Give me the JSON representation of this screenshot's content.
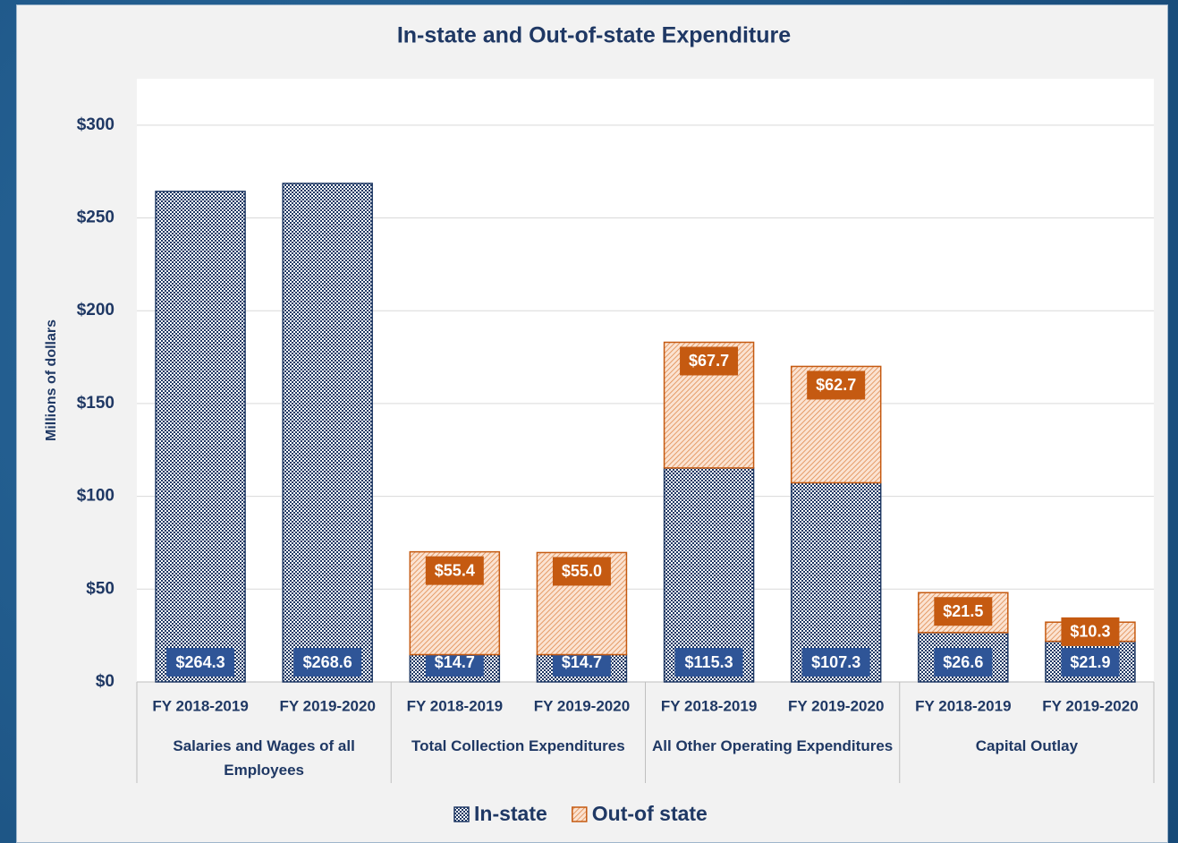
{
  "chart_data": {
    "type": "stacked_bar",
    "title": "In-state and Out-of-state Expenditure",
    "y_label": "Millions of dollars",
    "categories": [
      "FY 2018-2019",
      "FY 2019-2020",
      "FY 2018-2019",
      "FY 2019-2020",
      "FY 2018-2019",
      "FY 2019-2020",
      "FY 2018-2019",
      "FY 2019-2020"
    ],
    "groups": [
      "Salaries and Wages of all Employees",
      "Total Collection Expenditures",
      "All Other Operating Expenditures",
      "Capital Outlay"
    ],
    "series": [
      {
        "name": "In-state",
        "color": "#1f3864",
        "label_color": "#2f5597",
        "values": [
          264.3,
          268.6,
          14.7,
          14.7,
          115.3,
          107.3,
          26.6,
          21.9
        ],
        "value_labels": [
          "$264.3",
          "$268.6",
          "$14.7",
          "$14.7",
          "$115.3",
          "$107.3",
          "$26.6",
          "$21.9"
        ]
      },
      {
        "name": "Out-of state",
        "color": "#c55a11",
        "label_color": "#c55a11",
        "values": [
          null,
          null,
          55.4,
          55.0,
          67.7,
          62.7,
          21.5,
          10.3
        ],
        "value_labels": [
          null,
          null,
          "$55.4",
          "$55.0",
          "$67.7",
          "$62.7",
          "$21.5",
          "$10.3"
        ]
      }
    ],
    "ylim": [
      0,
      325
    ],
    "yticks": [
      {
        "value": 0,
        "label": "$0"
      },
      {
        "value": 50,
        "label": "$50"
      },
      {
        "value": 100,
        "label": "$100"
      },
      {
        "value": 150,
        "label": "$150"
      },
      {
        "value": 200,
        "label": "$200"
      },
      {
        "value": 250,
        "label": "$250"
      },
      {
        "value": 300,
        "label": "$300"
      }
    ],
    "grid": true,
    "legend": "bottom"
  }
}
